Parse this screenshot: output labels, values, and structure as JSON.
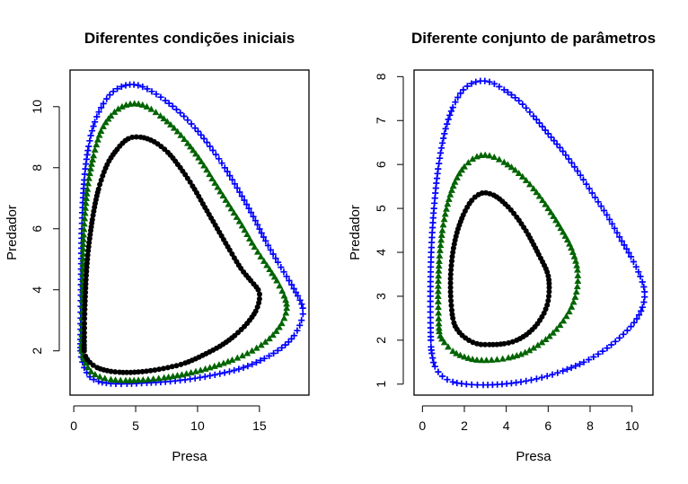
{
  "chart_data": [
    {
      "type": "scatter",
      "title": "Diferentes condições iniciais",
      "xlabel": "Presa",
      "ylabel": "Predador",
      "xlim": [
        -0.3,
        19.0
      ],
      "ylim": [
        0.55,
        11.2
      ],
      "xticks": [
        0,
        5,
        10,
        15
      ],
      "yticks": [
        2,
        4,
        6,
        8,
        10
      ],
      "series": [
        {
          "name": "blue-plus",
          "color": "#0000ff",
          "marker": "plus",
          "points": [
            [
              0.55,
              2.0
            ],
            [
              0.58,
              4.0
            ],
            [
              0.65,
              6.0
            ],
            [
              0.85,
              7.6
            ],
            [
              1.2,
              8.7
            ],
            [
              1.7,
              9.5
            ],
            [
              2.4,
              10.1
            ],
            [
              3.2,
              10.5
            ],
            [
              4.2,
              10.7
            ],
            [
              5.2,
              10.7
            ],
            [
              6.3,
              10.5
            ],
            [
              7.4,
              10.2
            ],
            [
              8.6,
              9.8
            ],
            [
              9.8,
              9.3
            ],
            [
              11.0,
              8.7
            ],
            [
              12.2,
              8.0
            ],
            [
              13.4,
              7.2
            ],
            [
              14.5,
              6.4
            ],
            [
              15.5,
              5.6
            ],
            [
              16.5,
              4.9
            ],
            [
              17.4,
              4.3
            ],
            [
              18.1,
              3.8
            ],
            [
              18.5,
              3.4
            ],
            [
              18.4,
              3.0
            ],
            [
              17.8,
              2.5
            ],
            [
              16.8,
              2.1
            ],
            [
              15.4,
              1.75
            ],
            [
              13.7,
              1.45
            ],
            [
              11.8,
              1.25
            ],
            [
              9.8,
              1.1
            ],
            [
              7.8,
              1.0
            ],
            [
              5.9,
              0.95
            ],
            [
              4.3,
              0.92
            ],
            [
              3.0,
              0.93
            ],
            [
              2.0,
              1.0
            ],
            [
              1.3,
              1.15
            ],
            [
              0.85,
              1.45
            ],
            [
              0.6,
              1.8
            ]
          ]
        },
        {
          "name": "green-triangle",
          "color": "#006400",
          "marker": "triangle",
          "points": [
            [
              0.65,
              2.0
            ],
            [
              0.7,
              4.0
            ],
            [
              0.8,
              5.8
            ],
            [
              1.1,
              7.3
            ],
            [
              1.6,
              8.4
            ],
            [
              2.2,
              9.2
            ],
            [
              3.0,
              9.7
            ],
            [
              3.9,
              10.0
            ],
            [
              4.9,
              10.1
            ],
            [
              5.9,
              10.0
            ],
            [
              7.0,
              9.7
            ],
            [
              8.1,
              9.3
            ],
            [
              9.2,
              8.8
            ],
            [
              10.3,
              8.2
            ],
            [
              11.4,
              7.5
            ],
            [
              12.5,
              6.8
            ],
            [
              13.6,
              6.1
            ],
            [
              14.6,
              5.4
            ],
            [
              15.6,
              4.8
            ],
            [
              16.4,
              4.3
            ],
            [
              17.0,
              3.8
            ],
            [
              17.2,
              3.4
            ],
            [
              16.8,
              2.9
            ],
            [
              15.8,
              2.4
            ],
            [
              14.4,
              2.0
            ],
            [
              12.8,
              1.7
            ],
            [
              11.0,
              1.45
            ],
            [
              9.1,
              1.25
            ],
            [
              7.3,
              1.12
            ],
            [
              5.6,
              1.05
            ],
            [
              4.2,
              1.03
            ],
            [
              3.0,
              1.06
            ],
            [
              2.1,
              1.15
            ],
            [
              1.4,
              1.32
            ],
            [
              0.95,
              1.6
            ],
            [
              0.72,
              1.85
            ]
          ]
        },
        {
          "name": "black-circle",
          "color": "#000000",
          "marker": "circle",
          "points": [
            [
              0.85,
              2.0
            ],
            [
              0.9,
              3.5
            ],
            [
              1.1,
              5.0
            ],
            [
              1.5,
              6.3
            ],
            [
              2.0,
              7.3
            ],
            [
              2.7,
              8.1
            ],
            [
              3.5,
              8.6
            ],
            [
              4.4,
              8.95
            ],
            [
              5.4,
              9.0
            ],
            [
              6.5,
              8.85
            ],
            [
              7.6,
              8.5
            ],
            [
              8.6,
              8.0
            ],
            [
              9.6,
              7.4
            ],
            [
              10.6,
              6.7
            ],
            [
              11.6,
              6.0
            ],
            [
              12.6,
              5.3
            ],
            [
              13.5,
              4.7
            ],
            [
              14.3,
              4.3
            ],
            [
              14.9,
              4.0
            ],
            [
              15.0,
              3.7
            ],
            [
              14.7,
              3.3
            ],
            [
              14.0,
              2.9
            ],
            [
              13.0,
              2.5
            ],
            [
              11.8,
              2.15
            ],
            [
              10.4,
              1.85
            ],
            [
              9.0,
              1.6
            ],
            [
              7.6,
              1.45
            ],
            [
              6.2,
              1.35
            ],
            [
              4.9,
              1.3
            ],
            [
              3.7,
              1.3
            ],
            [
              2.7,
              1.35
            ],
            [
              1.9,
              1.45
            ],
            [
              1.3,
              1.62
            ],
            [
              0.95,
              1.82
            ]
          ]
        }
      ]
    },
    {
      "type": "scatter",
      "title": "Diferente conjunto de parâmetros",
      "xlabel": "Presa",
      "ylabel": "Predador",
      "xlim": [
        -0.4,
        11.0
      ],
      "ylim": [
        0.75,
        8.15
      ],
      "xticks": [
        0,
        2,
        4,
        6,
        8,
        10
      ],
      "yticks": [
        1,
        2,
        3,
        4,
        5,
        6,
        7,
        8
      ],
      "series": [
        {
          "name": "blue-plus",
          "color": "#0000ff",
          "marker": "plus",
          "points": [
            [
              0.4,
              2.0
            ],
            [
              0.38,
              3.0
            ],
            [
              0.42,
              4.0
            ],
            [
              0.55,
              5.0
            ],
            [
              0.75,
              5.9
            ],
            [
              1.05,
              6.7
            ],
            [
              1.45,
              7.3
            ],
            [
              1.95,
              7.7
            ],
            [
              2.55,
              7.88
            ],
            [
              3.2,
              7.88
            ],
            [
              3.9,
              7.7
            ],
            [
              4.6,
              7.45
            ],
            [
              5.3,
              7.1
            ],
            [
              6.0,
              6.7
            ],
            [
              6.7,
              6.3
            ],
            [
              7.4,
              5.85
            ],
            [
              8.1,
              5.35
            ],
            [
              8.8,
              4.85
            ],
            [
              9.4,
              4.35
            ],
            [
              9.95,
              3.9
            ],
            [
              10.4,
              3.45
            ],
            [
              10.6,
              3.1
            ],
            [
              10.5,
              2.75
            ],
            [
              10.1,
              2.4
            ],
            [
              9.4,
              2.05
            ],
            [
              8.6,
              1.75
            ],
            [
              7.7,
              1.5
            ],
            [
              6.7,
              1.3
            ],
            [
              5.7,
              1.15
            ],
            [
              4.7,
              1.05
            ],
            [
              3.8,
              1.0
            ],
            [
              2.9,
              0.98
            ],
            [
              2.1,
              1.0
            ],
            [
              1.45,
              1.05
            ],
            [
              0.95,
              1.18
            ],
            [
              0.6,
              1.4
            ],
            [
              0.45,
              1.7
            ]
          ]
        },
        {
          "name": "green-triangle",
          "color": "#006400",
          "marker": "triangle",
          "points": [
            [
              0.8,
              2.2
            ],
            [
              0.75,
              3.0
            ],
            [
              0.8,
              3.8
            ],
            [
              0.95,
              4.5
            ],
            [
              1.2,
              5.1
            ],
            [
              1.55,
              5.6
            ],
            [
              2.0,
              5.95
            ],
            [
              2.6,
              6.18
            ],
            [
              3.2,
              6.2
            ],
            [
              3.9,
              6.05
            ],
            [
              4.6,
              5.8
            ],
            [
              5.3,
              5.45
            ],
            [
              6.0,
              5.0
            ],
            [
              6.6,
              4.55
            ],
            [
              7.1,
              4.1
            ],
            [
              7.4,
              3.6
            ],
            [
              7.35,
              3.1
            ],
            [
              7.0,
              2.65
            ],
            [
              6.4,
              2.25
            ],
            [
              5.7,
              1.95
            ],
            [
              4.9,
              1.72
            ],
            [
              4.1,
              1.6
            ],
            [
              3.3,
              1.55
            ],
            [
              2.6,
              1.55
            ],
            [
              2.0,
              1.62
            ],
            [
              1.45,
              1.75
            ],
            [
              1.05,
              1.95
            ],
            [
              0.85,
              2.1
            ]
          ]
        },
        {
          "name": "black-circle",
          "color": "#000000",
          "marker": "circle",
          "points": [
            [
              1.45,
              2.5
            ],
            [
              1.35,
              3.0
            ],
            [
              1.35,
              3.5
            ],
            [
              1.45,
              4.0
            ],
            [
              1.65,
              4.45
            ],
            [
              1.95,
              4.85
            ],
            [
              2.35,
              5.18
            ],
            [
              2.85,
              5.35
            ],
            [
              3.4,
              5.3
            ],
            [
              3.95,
              5.1
            ],
            [
              4.5,
              4.8
            ],
            [
              5.05,
              4.4
            ],
            [
              5.55,
              3.95
            ],
            [
              5.95,
              3.55
            ],
            [
              6.05,
              3.2
            ],
            [
              5.95,
              2.8
            ],
            [
              5.6,
              2.45
            ],
            [
              5.1,
              2.18
            ],
            [
              4.5,
              2.0
            ],
            [
              3.9,
              1.92
            ],
            [
              3.2,
              1.9
            ],
            [
              2.6,
              1.92
            ],
            [
              2.05,
              2.05
            ],
            [
              1.65,
              2.25
            ]
          ]
        }
      ]
    }
  ]
}
